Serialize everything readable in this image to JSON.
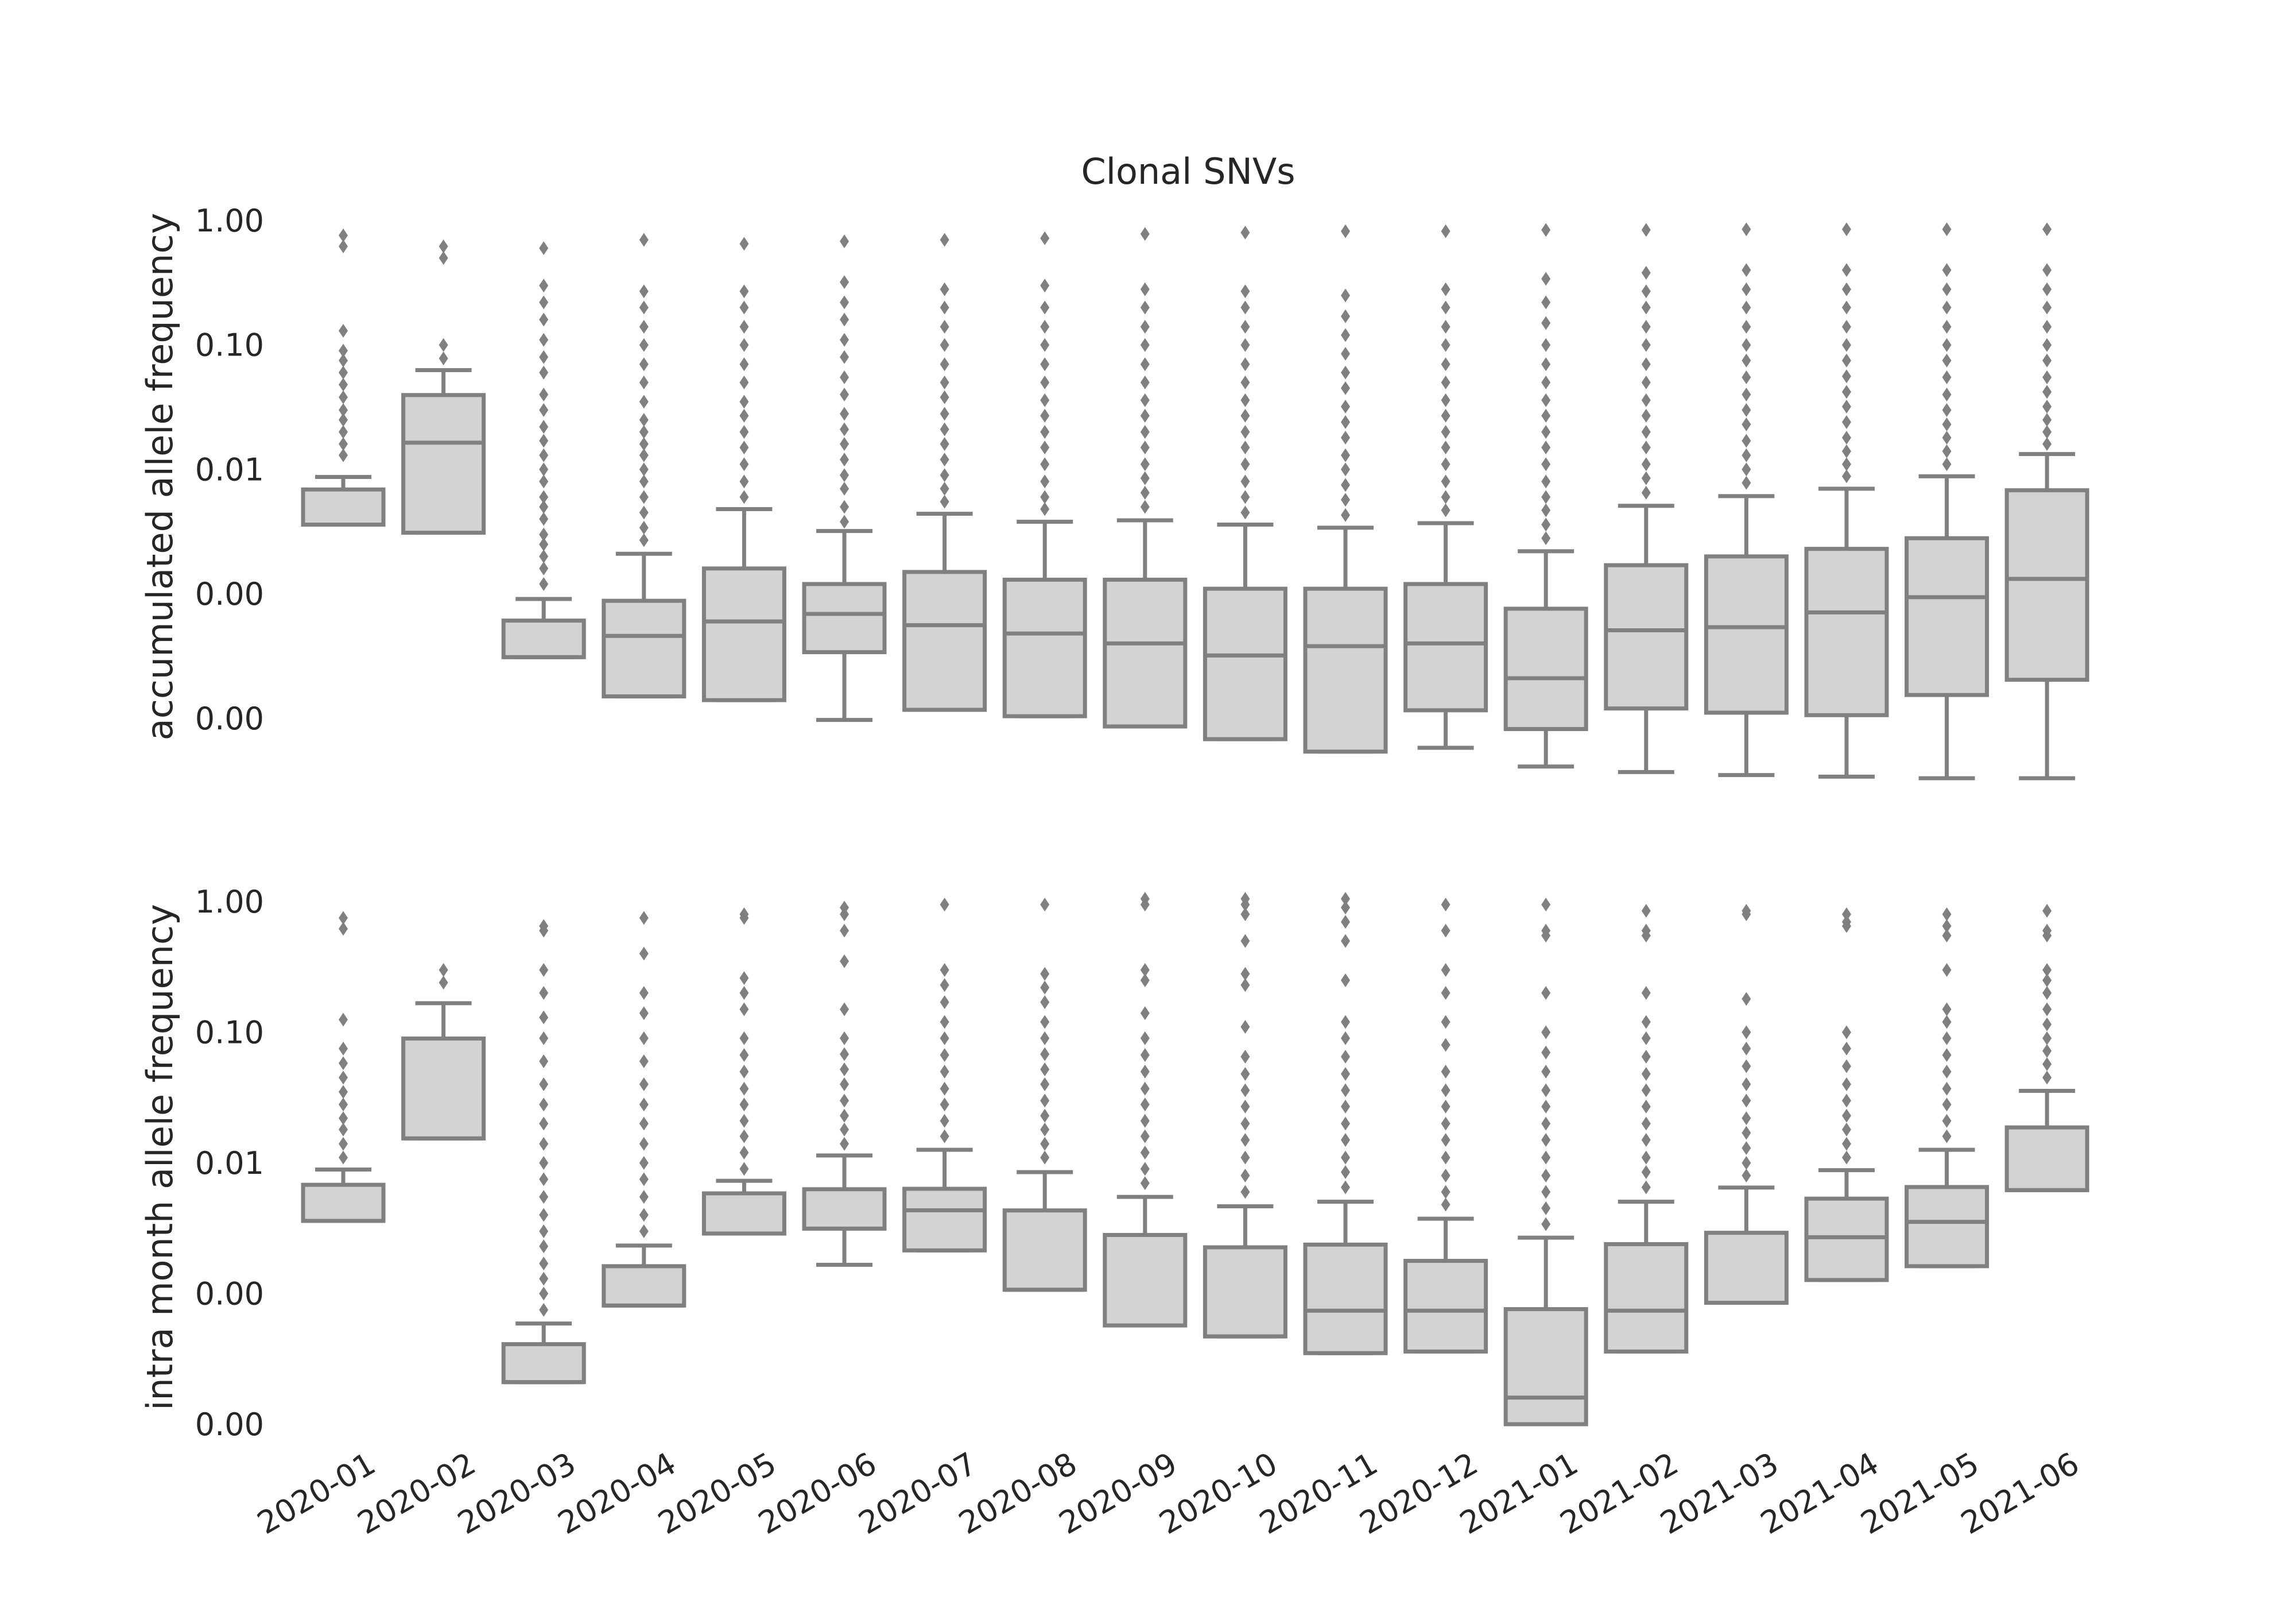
{
  "chart_data": {
    "title": "Clonal SNVs",
    "type": "box",
    "categories": [
      "2020-01",
      "2020-02",
      "2020-03",
      "2020-04",
      "2020-05",
      "2020-06",
      "2020-07",
      "2020-08",
      "2020-09",
      "2020-10",
      "2020-11",
      "2020-12",
      "2021-01",
      "2021-02",
      "2021-03",
      "2021-04",
      "2021-05",
      "2021-06"
    ],
    "colors": {
      "box_fill": "#d3d3d3",
      "box_edge": "#808080",
      "text": "#262626"
    },
    "y_scale": "log",
    "panels": [
      {
        "ylabel": "accumulated allele frequency",
        "ylim_log10": [
          -4.55,
          0.0
        ],
        "yticks": [
          {
            "value": 1.0,
            "label": "1.00"
          },
          {
            "value": 0.1,
            "label": "0.10"
          },
          {
            "value": 0.01,
            "label": "0.01"
          },
          {
            "value": 0.001,
            "label": "0.00"
          },
          {
            "value": 0.0001,
            "label": "0.00"
          }
        ],
        "boxes": [
          {
            "q1": 0.0036,
            "median": 0.0036,
            "q3": 0.0069,
            "wlo": 0.0036,
            "whi": 0.0087,
            "outliers": [
              0.013,
              0.016,
              0.02,
              0.025,
              0.03,
              0.038,
              0.048,
              0.06,
              0.075,
              0.09,
              0.13,
              0.62,
              0.76
            ]
          },
          {
            "q1": 0.0031,
            "median": 0.0164,
            "q3": 0.0396,
            "wlo": 0.0031,
            "whi": 0.0628,
            "outliers": [
              0.078,
              0.1,
              0.5,
              0.62
            ]
          },
          {
            "q1": 0.00031,
            "median": 0.00031,
            "q3": 0.00061,
            "wlo": 0.00031,
            "whi": 0.00091,
            "outliers": [
              0.0012,
              0.0016,
              0.002,
              0.0025,
              0.003,
              0.004,
              0.005,
              0.006,
              0.008,
              0.01,
              0.013,
              0.017,
              0.022,
              0.03,
              0.04,
              0.06,
              0.08,
              0.11,
              0.16,
              0.22,
              0.3,
              0.6
            ]
          },
          {
            "q1": 0.00015,
            "median": 0.00046,
            "q3": 0.00088,
            "wlo": 0.00015,
            "whi": 0.0021,
            "outliers": [
              0.0027,
              0.0034,
              0.0045,
              0.006,
              0.008,
              0.01,
              0.013,
              0.016,
              0.02,
              0.025,
              0.035,
              0.05,
              0.07,
              0.1,
              0.14,
              0.2,
              0.27,
              0.7
            ]
          },
          {
            "q1": 0.00014,
            "median": 0.0006,
            "q3": 0.0016,
            "wlo": 0.00014,
            "whi": 0.0048,
            "outliers": [
              0.006,
              0.008,
              0.011,
              0.015,
              0.02,
              0.027,
              0.035,
              0.05,
              0.07,
              0.1,
              0.14,
              0.2,
              0.27,
              0.65
            ]
          },
          {
            "q1": 0.00034,
            "median": 0.00069,
            "q3": 0.0012,
            "wlo": 9.7e-05,
            "whi": 0.0032,
            "outliers": [
              0.0038,
              0.005,
              0.007,
              0.009,
              0.012,
              0.016,
              0.021,
              0.028,
              0.04,
              0.055,
              0.08,
              0.11,
              0.16,
              0.22,
              0.32,
              0.68
            ]
          },
          {
            "q1": 0.000117,
            "median": 0.00056,
            "q3": 0.0015,
            "wlo": 0.000117,
            "whi": 0.0044,
            "outliers": [
              0.0055,
              0.007,
              0.009,
              0.012,
              0.016,
              0.021,
              0.028,
              0.038,
              0.05,
              0.07,
              0.1,
              0.14,
              0.2,
              0.28,
              0.7
            ]
          },
          {
            "q1": 0.000104,
            "median": 0.00048,
            "q3": 0.0013,
            "wlo": 0.000104,
            "whi": 0.0038,
            "outliers": [
              0.0048,
              0.006,
              0.008,
              0.011,
              0.015,
              0.02,
              0.027,
              0.036,
              0.05,
              0.07,
              0.1,
              0.14,
              0.2,
              0.3,
              0.72
            ]
          },
          {
            "q1": 8.6e-05,
            "median": 0.0004,
            "q3": 0.0013,
            "wlo": 8.6e-05,
            "whi": 0.0039,
            "outliers": [
              0.005,
              0.0065,
              0.0085,
              0.011,
              0.015,
              0.02,
              0.027,
              0.036,
              0.05,
              0.07,
              0.1,
              0.14,
              0.2,
              0.28,
              0.78
            ]
          },
          {
            "q1": 6.8e-05,
            "median": 0.00032,
            "q3": 0.0011,
            "wlo": 6.8e-05,
            "whi": 0.0036,
            "outliers": [
              0.0045,
              0.006,
              0.008,
              0.011,
              0.015,
              0.02,
              0.027,
              0.036,
              0.05,
              0.07,
              0.1,
              0.14,
              0.2,
              0.27,
              0.8
            ]
          },
          {
            "q1": 5.4e-05,
            "median": 0.00038,
            "q3": 0.0011,
            "wlo": 5.4e-05,
            "whi": 0.0034,
            "outliers": [
              0.0043,
              0.0057,
              0.0075,
              0.01,
              0.013,
              0.018,
              0.024,
              0.032,
              0.045,
              0.06,
              0.085,
              0.12,
              0.17,
              0.25,
              0.82
            ]
          },
          {
            "q1": 0.000116,
            "median": 0.0004,
            "q3": 0.0012,
            "wlo": 5.8e-05,
            "whi": 0.0037,
            "outliers": [
              0.0047,
              0.006,
              0.008,
              0.011,
              0.015,
              0.02,
              0.027,
              0.036,
              0.05,
              0.07,
              0.1,
              0.14,
              0.2,
              0.28,
              0.82
            ]
          },
          {
            "q1": 8.2e-05,
            "median": 0.00021,
            "q3": 0.00076,
            "wlo": 4.1e-05,
            "whi": 0.0022,
            "outliers": [
              0.0028,
              0.0036,
              0.0047,
              0.006,
              0.008,
              0.011,
              0.015,
              0.02,
              0.027,
              0.036,
              0.05,
              0.07,
              0.1,
              0.15,
              0.22,
              0.34,
              0.84
            ]
          },
          {
            "q1": 0.00012,
            "median": 0.00051,
            "q3": 0.0017,
            "wlo": 3.7e-05,
            "whi": 0.0051,
            "outliers": [
              0.0065,
              0.0085,
              0.011,
              0.015,
              0.02,
              0.027,
              0.036,
              0.05,
              0.07,
              0.1,
              0.14,
              0.2,
              0.27,
              0.38,
              0.84
            ]
          },
          {
            "q1": 0.000111,
            "median": 0.00054,
            "q3": 0.002,
            "wlo": 3.5e-05,
            "whi": 0.0061,
            "outliers": [
              0.0078,
              0.01,
              0.013,
              0.017,
              0.023,
              0.03,
              0.04,
              0.055,
              0.075,
              0.1,
              0.14,
              0.2,
              0.28,
              0.4,
              0.85
            ]
          },
          {
            "q1": 0.000106,
            "median": 0.00071,
            "q3": 0.0023,
            "wlo": 3.4e-05,
            "whi": 0.007,
            "outliers": [
              0.0088,
              0.011,
              0.014,
              0.018,
              0.024,
              0.032,
              0.042,
              0.056,
              0.075,
              0.1,
              0.14,
              0.2,
              0.28,
              0.4,
              0.85
            ]
          },
          {
            "q1": 0.000154,
            "median": 0.00094,
            "q3": 0.0028,
            "wlo": 3.3e-05,
            "whi": 0.0088,
            "outliers": [
              0.011,
              0.014,
              0.018,
              0.023,
              0.03,
              0.04,
              0.055,
              0.075,
              0.1,
              0.14,
              0.2,
              0.28,
              0.4,
              0.85
            ]
          },
          {
            "q1": 0.000204,
            "median": 0.00132,
            "q3": 0.0068,
            "wlo": 3.3e-05,
            "whi": 0.0133,
            "outliers": [
              0.016,
              0.02,
              0.025,
              0.032,
              0.042,
              0.055,
              0.075,
              0.1,
              0.14,
              0.2,
              0.28,
              0.4,
              0.85
            ]
          }
        ]
      },
      {
        "ylabel": "intra month allele frequency",
        "ylim_log10": [
          -4.0,
          0.0
        ],
        "yticks": [
          {
            "value": 1.0,
            "label": "1.00"
          },
          {
            "value": 0.1,
            "label": "0.10"
          },
          {
            "value": 0.01,
            "label": "0.01"
          },
          {
            "value": 0.001,
            "label": "0.00"
          },
          {
            "value": 0.0001,
            "label": "0.00"
          }
        ],
        "boxes": [
          {
            "q1": 0.0036,
            "median": 0.0036,
            "q3": 0.0068,
            "wlo": 0.0036,
            "whi": 0.0089,
            "outliers": [
              0.011,
              0.014,
              0.018,
              0.022,
              0.028,
              0.035,
              0.045,
              0.058,
              0.075,
              0.125,
              0.62,
              0.75
            ]
          },
          {
            "q1": 0.0154,
            "median": 0.0154,
            "q3": 0.0896,
            "wlo": 0.0154,
            "whi": 0.167,
            "outliers": [
              0.24,
              0.3
            ]
          },
          {
            "q1": 0.00021,
            "median": 0.00021,
            "q3": 0.00041,
            "wlo": 0.00021,
            "whi": 0.00059,
            "outliers": [
              0.00075,
              0.001,
              0.0013,
              0.0017,
              0.0023,
              0.003,
              0.004,
              0.0055,
              0.0075,
              0.01,
              0.014,
              0.02,
              0.028,
              0.04,
              0.06,
              0.09,
              0.13,
              0.2,
              0.3,
              0.6,
              0.65
            ]
          },
          {
            "q1": 0.00081,
            "median": 0.00081,
            "q3": 0.00162,
            "wlo": 0.00081,
            "whi": 0.00233,
            "outliers": [
              0.003,
              0.004,
              0.0055,
              0.0075,
              0.01,
              0.014,
              0.02,
              0.028,
              0.04,
              0.06,
              0.09,
              0.14,
              0.2,
              0.4,
              0.75
            ]
          },
          {
            "q1": 0.00288,
            "median": 0.00288,
            "q3": 0.00585,
            "wlo": 0.00288,
            "whi": 0.0073,
            "outliers": [
              0.009,
              0.012,
              0.016,
              0.021,
              0.028,
              0.037,
              0.05,
              0.067,
              0.09,
              0.15,
              0.2,
              0.26,
              0.75,
              0.8
            ]
          },
          {
            "q1": 0.00314,
            "median": 0.00314,
            "q3": 0.00629,
            "wlo": 0.00166,
            "whi": 0.0114,
            "outliers": [
              0.014,
              0.018,
              0.023,
              0.03,
              0.04,
              0.052,
              0.068,
              0.09,
              0.15,
              0.35,
              0.6,
              0.8,
              0.9
            ]
          },
          {
            "q1": 0.00214,
            "median": 0.00434,
            "q3": 0.00634,
            "wlo": 0.00214,
            "whi": 0.0126,
            "outliers": [
              0.016,
              0.021,
              0.028,
              0.037,
              0.05,
              0.067,
              0.09,
              0.12,
              0.17,
              0.23,
              0.3,
              0.95
            ]
          },
          {
            "q1": 0.00107,
            "median": 0.00107,
            "q3": 0.00433,
            "wlo": 0.00107,
            "whi": 0.00851,
            "outliers": [
              0.011,
              0.014,
              0.018,
              0.023,
              0.03,
              0.04,
              0.052,
              0.068,
              0.09,
              0.12,
              0.17,
              0.22,
              0.28,
              0.95
            ]
          },
          {
            "q1": 0.00057,
            "median": 0.00057,
            "q3": 0.00281,
            "wlo": 0.00057,
            "whi": 0.0055,
            "outliers": [
              0.007,
              0.009,
              0.012,
              0.016,
              0.021,
              0.028,
              0.037,
              0.05,
              0.067,
              0.09,
              0.14,
              0.25,
              0.3,
              0.95,
              1.05
            ]
          },
          {
            "q1": 0.00047,
            "median": 0.00047,
            "q3": 0.00226,
            "wlo": 0.00047,
            "whi": 0.00466,
            "outliers": [
              0.006,
              0.008,
              0.011,
              0.015,
              0.02,
              0.027,
              0.036,
              0.048,
              0.065,
              0.11,
              0.23,
              0.28,
              0.5,
              0.8,
              0.95,
              1.05
            ]
          },
          {
            "q1": 0.00035,
            "median": 0.00074,
            "q3": 0.00237,
            "wlo": 0.00035,
            "whi": 0.00505,
            "outliers": [
              0.0065,
              0.0085,
              0.011,
              0.015,
              0.02,
              0.027,
              0.036,
              0.048,
              0.065,
              0.09,
              0.12,
              0.25,
              0.5,
              0.7,
              0.9,
              1.05
            ]
          },
          {
            "q1": 0.00036,
            "median": 0.00074,
            "q3": 0.00178,
            "wlo": 0.00036,
            "whi": 0.00374,
            "outliers": [
              0.0048,
              0.006,
              0.008,
              0.011,
              0.015,
              0.02,
              0.027,
              0.036,
              0.05,
              0.08,
              0.12,
              0.2,
              0.3,
              0.6,
              0.95
            ]
          },
          {
            "q1": 0.0001,
            "median": 0.00016,
            "q3": 0.00076,
            "wlo": 0.0001,
            "whi": 0.00268,
            "outliers": [
              0.0034,
              0.0045,
              0.006,
              0.008,
              0.011,
              0.015,
              0.02,
              0.027,
              0.036,
              0.05,
              0.07,
              0.1,
              0.2,
              0.55,
              0.6,
              0.95
            ]
          },
          {
            "q1": 0.00036,
            "median": 0.00074,
            "q3": 0.00239,
            "wlo": 0.00036,
            "whi": 0.00505,
            "outliers": [
              0.0065,
              0.0085,
              0.011,
              0.015,
              0.02,
              0.027,
              0.036,
              0.048,
              0.065,
              0.09,
              0.12,
              0.2,
              0.55,
              0.6,
              0.85
            ]
          },
          {
            "q1": 0.00085,
            "median": 0.00085,
            "q3": 0.00292,
            "wlo": 0.00085,
            "whi": 0.00648,
            "outliers": [
              0.008,
              0.01,
              0.013,
              0.017,
              0.022,
              0.03,
              0.04,
              0.055,
              0.075,
              0.1,
              0.18,
              0.8,
              0.85
            ]
          },
          {
            "q1": 0.00127,
            "median": 0.0027,
            "q3": 0.00533,
            "wlo": 0.00127,
            "whi": 0.0088,
            "outliers": [
              0.011,
              0.014,
              0.018,
              0.023,
              0.03,
              0.04,
              0.055,
              0.075,
              0.1,
              0.65,
              0.7,
              0.8
            ]
          },
          {
            "q1": 0.00162,
            "median": 0.00354,
            "q3": 0.00654,
            "wlo": 0.00162,
            "whi": 0.0126,
            "outliers": [
              0.016,
              0.021,
              0.028,
              0.037,
              0.05,
              0.067,
              0.09,
              0.12,
              0.15,
              0.3,
              0.55,
              0.65,
              0.8
            ]
          },
          {
            "q1": 0.00619,
            "median": 0.00619,
            "q3": 0.0187,
            "wlo": 0.00619,
            "whi": 0.0356,
            "outliers": [
              0.045,
              0.057,
              0.072,
              0.09,
              0.115,
              0.15,
              0.2,
              0.25,
              0.3,
              0.55,
              0.6,
              0.85
            ]
          }
        ]
      }
    ]
  }
}
